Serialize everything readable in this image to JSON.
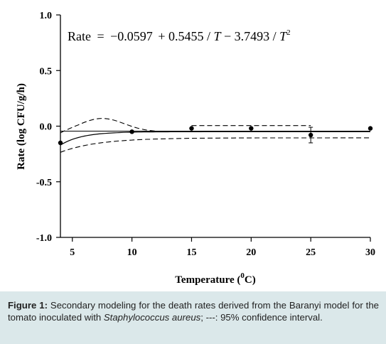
{
  "chart_data": {
    "type": "scatter",
    "equation": "Rate = −0.0597 + 0.5455 / T − 3.7493 / T²",
    "equation_parts": {
      "lhs": "Rate",
      "eq": "=",
      "c0": "−0.0597",
      "c1": "+ 0.5455 / ",
      "t1": "T",
      "c2": " − 3.7493 / ",
      "t2": "T",
      "exp": "2"
    },
    "xlabel": "Temperature (°C)",
    "xlabel_parts": {
      "main": "Temperature (",
      "sup": "0",
      "end": "C)"
    },
    "ylabel": "Rate (log CFU/g/h)",
    "xlim": [
      4,
      30
    ],
    "ylim": [
      -1.0,
      1.0
    ],
    "x_ticks": [
      "5",
      "10",
      "15",
      "20",
      "25",
      "30"
    ],
    "y_ticks": [
      "1.0",
      "0.5",
      "0.0",
      "-0.5",
      "-1.0"
    ],
    "series": [
      {
        "points": [
          {
            "x": 4,
            "y": -0.15,
            "err": 0
          },
          {
            "x": 10,
            "y": -0.05,
            "err": 0
          },
          {
            "x": 15,
            "y": -0.02,
            "err": 0
          },
          {
            "x": 20,
            "y": -0.02,
            "err": 0
          },
          {
            "x": 25,
            "y": -0.08,
            "err": 0.07
          },
          {
            "x": 30,
            "y": -0.02,
            "err": 0
          }
        ]
      }
    ],
    "fit_line_note": "solid line: model; dashed lines: 95% confidence interval"
  },
  "caption": {
    "label": "Figure 1:",
    "text_before": " Secondary modeling for the death rates derived from the Baranyi model for the tomato inoculated with ",
    "italic": "Staphylococcus aureus",
    "text_after": "; ---: 95% confidence interval."
  }
}
